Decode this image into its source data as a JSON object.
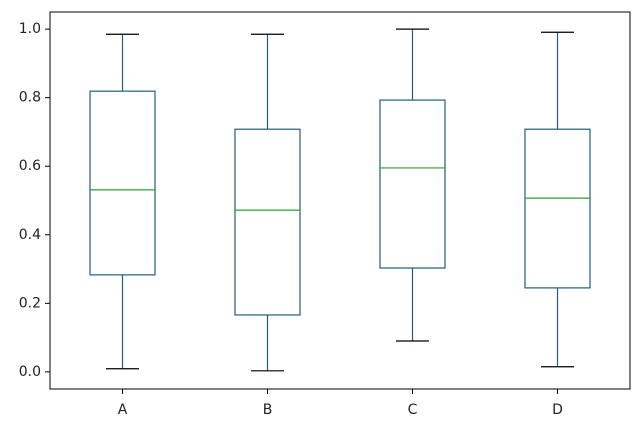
{
  "chart_data": {
    "type": "box",
    "categories": [
      "A",
      "B",
      "C",
      "D"
    ],
    "boxes": [
      {
        "min": 0.009,
        "q1": 0.283,
        "median": 0.531,
        "q3": 0.819,
        "max": 0.985
      },
      {
        "min": 0.003,
        "q1": 0.166,
        "median": 0.472,
        "q3": 0.708,
        "max": 0.985
      },
      {
        "min": 0.09,
        "q1": 0.303,
        "median": 0.595,
        "q3": 0.793,
        "max": 1.0
      },
      {
        "min": 0.015,
        "q1": 0.245,
        "median": 0.507,
        "q3": 0.708,
        "max": 0.991
      }
    ],
    "box_color": "#1f5f7a",
    "median_color": "#2ca02c",
    "cap_color": "#000000",
    "ylim": [
      -0.05,
      1.05
    ],
    "yticks": [
      {
        "value": 0,
        "label": "0.0"
      },
      0.2,
      0.4,
      0.6,
      0.8,
      {
        "value": 1,
        "label": "1.0"
      }
    ]
  }
}
